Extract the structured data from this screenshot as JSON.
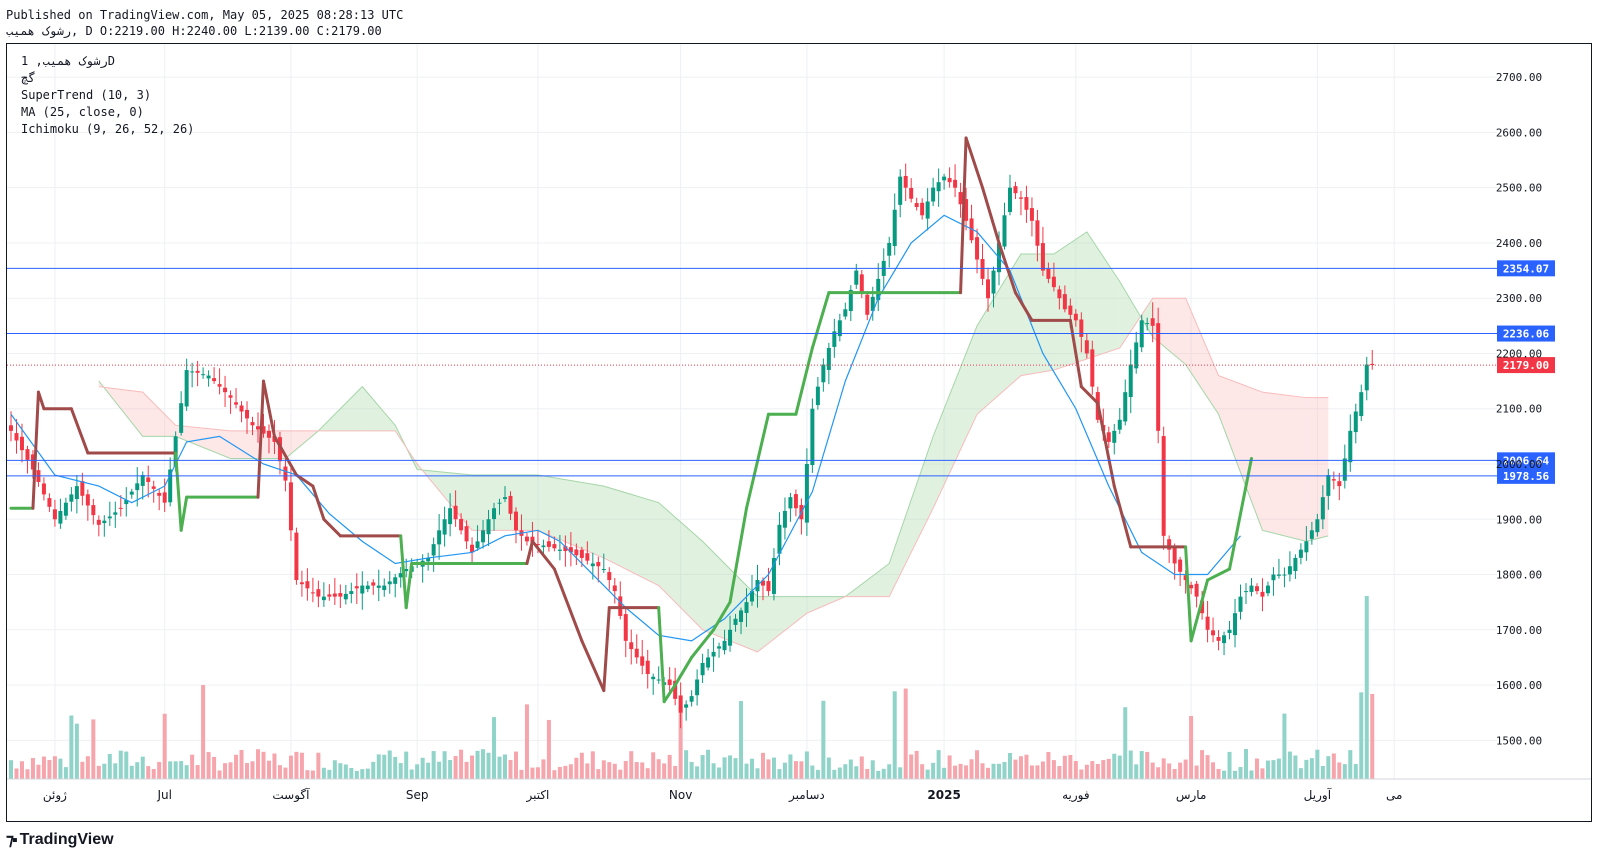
{
  "header": {
    "published": "Published on TradingView.com, May 05, 2025 08:28:13 UTC",
    "ohlc": "رشوک همیب, D O:2219.00 H:2240.00 L:2139.00 C:2179.00"
  },
  "legend": {
    "symbol": "رشوک همیب, 1D",
    "exchange": "گچ",
    "supertrend": "SuperTrend (10, 3)",
    "ma": "MA (25, close, 0)",
    "ichimoku": "Ichimoku (9, 26, 52, 26)"
  },
  "footer": {
    "logo_text": "TradingView"
  },
  "chart_data": {
    "type": "candlestick",
    "ylim": [
      1430,
      2760
    ],
    "y_ticks": [
      1500,
      1600,
      1700,
      1800,
      1900,
      2000,
      2100,
      2200,
      2300,
      2400,
      2500,
      2600,
      2700
    ],
    "grid": true,
    "x_labels": [
      {
        "text": "ژوئن",
        "bar": 8
      },
      {
        "text": "Jul",
        "bar": 28
      },
      {
        "text": "آگوست",
        "bar": 51
      },
      {
        "text": "Sep",
        "bar": 74
      },
      {
        "text": "اکتبر",
        "bar": 96
      },
      {
        "text": "Nov",
        "bar": 122
      },
      {
        "text": "دسامبر",
        "bar": 145
      },
      {
        "text": "2025",
        "bar": 170
      },
      {
        "text": "فوریه",
        "bar": 194
      },
      {
        "text": "مارس",
        "bar": 215
      },
      {
        "text": "آوریل",
        "bar": 238
      },
      {
        "text": "می",
        "bar": 252
      }
    ],
    "horizontal_lines": [
      {
        "value": 2354.07,
        "label": "2354.07",
        "color": "#2962ff"
      },
      {
        "value": 2236.06,
        "label": "2236.06",
        "color": "#2962ff"
      },
      {
        "value": 2006.64,
        "label": "2006.64",
        "color": "#2962ff"
      },
      {
        "value": 1978.56,
        "label": "1978.56",
        "color": "#2962ff"
      }
    ],
    "last_price": {
      "value": 2179.0,
      "label": "2179.00",
      "color": "#f23645"
    },
    "anchors": [
      [
        0,
        2060
      ],
      [
        4,
        1990
      ],
      [
        8,
        1900
      ],
      [
        12,
        1960
      ],
      [
        16,
        1890
      ],
      [
        20,
        1920
      ],
      [
        24,
        1980
      ],
      [
        28,
        1930
      ],
      [
        32,
        2170
      ],
      [
        36,
        2160
      ],
      [
        40,
        2120
      ],
      [
        44,
        2070
      ],
      [
        48,
        2040
      ],
      [
        50,
        1970
      ],
      [
        51,
        1880
      ],
      [
        52,
        1790
      ],
      [
        56,
        1760
      ],
      [
        60,
        1760
      ],
      [
        64,
        1780
      ],
      [
        68,
        1780
      ],
      [
        72,
        1810
      ],
      [
        76,
        1830
      ],
      [
        78,
        1880
      ],
      [
        80,
        1920
      ],
      [
        82,
        1880
      ],
      [
        84,
        1840
      ],
      [
        88,
        1920
      ],
      [
        90,
        1940
      ],
      [
        92,
        1880
      ],
      [
        94,
        1860
      ],
      [
        98,
        1850
      ],
      [
        102,
        1840
      ],
      [
        106,
        1820
      ],
      [
        108,
        1810
      ],
      [
        110,
        1770
      ],
      [
        112,
        1680
      ],
      [
        116,
        1620
      ],
      [
        120,
        1600
      ],
      [
        122,
        1550
      ],
      [
        124,
        1580
      ],
      [
        126,
        1640
      ],
      [
        130,
        1680
      ],
      [
        132,
        1720
      ],
      [
        134,
        1750
      ],
      [
        136,
        1790
      ],
      [
        138,
        1770
      ],
      [
        140,
        1890
      ],
      [
        142,
        1940
      ],
      [
        144,
        1900
      ],
      [
        146,
        2100
      ],
      [
        148,
        2180
      ],
      [
        150,
        2240
      ],
      [
        152,
        2280
      ],
      [
        154,
        2350
      ],
      [
        156,
        2270
      ],
      [
        160,
        2400
      ],
      [
        162,
        2520
      ],
      [
        164,
        2480
      ],
      [
        166,
        2450
      ],
      [
        168,
        2500
      ],
      [
        170,
        2520
      ],
      [
        172,
        2500
      ],
      [
        174,
        2440
      ],
      [
        176,
        2370
      ],
      [
        178,
        2300
      ],
      [
        180,
        2400
      ],
      [
        182,
        2500
      ],
      [
        184,
        2480
      ],
      [
        186,
        2440
      ],
      [
        188,
        2350
      ],
      [
        190,
        2320
      ],
      [
        192,
        2280
      ],
      [
        194,
        2260
      ],
      [
        196,
        2200
      ],
      [
        198,
        2080
      ],
      [
        200,
        2040
      ],
      [
        202,
        2080
      ],
      [
        204,
        2180
      ],
      [
        206,
        2260
      ],
      [
        208,
        2250
      ],
      [
        210,
        1870
      ],
      [
        212,
        1820
      ],
      [
        214,
        1790
      ],
      [
        216,
        1760
      ],
      [
        218,
        1700
      ],
      [
        220,
        1680
      ],
      [
        222,
        1700
      ],
      [
        224,
        1760
      ],
      [
        226,
        1780
      ],
      [
        228,
        1760
      ],
      [
        230,
        1800
      ],
      [
        232,
        1800
      ],
      [
        234,
        1830
      ],
      [
        236,
        1860
      ],
      [
        238,
        1900
      ],
      [
        240,
        1980
      ],
      [
        242,
        1960
      ],
      [
        244,
        2060
      ],
      [
        246,
        2130
      ],
      [
        247,
        2180
      ],
      [
        248,
        2179
      ]
    ],
    "supertrend": [
      [
        0,
        1920,
        "up"
      ],
      [
        4,
        1920,
        "up"
      ],
      [
        5,
        2130,
        "down"
      ],
      [
        6,
        2100,
        "down"
      ],
      [
        11,
        2100,
        "down"
      ],
      [
        14,
        2020,
        "down"
      ],
      [
        30,
        2020,
        "down"
      ],
      [
        31,
        1880,
        "up"
      ],
      [
        32,
        1940,
        "up"
      ],
      [
        45,
        1940,
        "up"
      ],
      [
        46,
        2150,
        "down"
      ],
      [
        48,
        2050,
        "down"
      ],
      [
        52,
        1980,
        "down"
      ],
      [
        55,
        1960,
        "down"
      ],
      [
        57,
        1900,
        "down"
      ],
      [
        60,
        1870,
        "down"
      ],
      [
        71,
        1870,
        "down"
      ],
      [
        72,
        1740,
        "up"
      ],
      [
        73,
        1820,
        "up"
      ],
      [
        94,
        1820,
        "up"
      ],
      [
        95,
        1860,
        "down"
      ],
      [
        99,
        1810,
        "down"
      ],
      [
        104,
        1680,
        "down"
      ],
      [
        108,
        1590,
        "down"
      ],
      [
        109,
        1740,
        "down"
      ],
      [
        118,
        1740,
        "down"
      ],
      [
        119,
        1570,
        "up"
      ],
      [
        121,
        1600,
        "up"
      ],
      [
        124,
        1650,
        "up"
      ],
      [
        128,
        1700,
        "up"
      ],
      [
        131,
        1750,
        "up"
      ],
      [
        134,
        1920,
        "up"
      ],
      [
        138,
        2090,
        "up"
      ],
      [
        143,
        2090,
        "up"
      ],
      [
        146,
        2210,
        "up"
      ],
      [
        149,
        2310,
        "up"
      ],
      [
        173,
        2310,
        "up"
      ],
      [
        174,
        2590,
        "down"
      ],
      [
        177,
        2500,
        "down"
      ],
      [
        180,
        2400,
        "down"
      ],
      [
        183,
        2310,
        "down"
      ],
      [
        186,
        2260,
        "down"
      ],
      [
        193,
        2260,
        "down"
      ],
      [
        195,
        2140,
        "down"
      ],
      [
        198,
        2110,
        "down"
      ],
      [
        201,
        1960,
        "down"
      ],
      [
        204,
        1850,
        "down"
      ],
      [
        214,
        1850,
        "down"
      ],
      [
        215,
        1680,
        "up"
      ],
      [
        218,
        1790,
        "up"
      ],
      [
        222,
        1810,
        "up"
      ],
      [
        226,
        2010,
        "up"
      ]
    ],
    "ma_curve": [
      [
        0,
        2090
      ],
      [
        8,
        1980
      ],
      [
        16,
        1960
      ],
      [
        22,
        1930
      ],
      [
        28,
        1960
      ],
      [
        32,
        2040
      ],
      [
        38,
        2050
      ],
      [
        46,
        2000
      ],
      [
        52,
        1980
      ],
      [
        58,
        1910
      ],
      [
        64,
        1860
      ],
      [
        70,
        1820
      ],
      [
        76,
        1830
      ],
      [
        84,
        1840
      ],
      [
        90,
        1870
      ],
      [
        96,
        1880
      ],
      [
        100,
        1860
      ],
      [
        106,
        1800
      ],
      [
        112,
        1740
      ],
      [
        118,
        1690
      ],
      [
        124,
        1680
      ],
      [
        130,
        1720
      ],
      [
        138,
        1800
      ],
      [
        146,
        1950
      ],
      [
        152,
        2150
      ],
      [
        158,
        2300
      ],
      [
        164,
        2400
      ],
      [
        170,
        2450
      ],
      [
        176,
        2420
      ],
      [
        182,
        2350
      ],
      [
        188,
        2200
      ],
      [
        194,
        2100
      ],
      [
        200,
        1960
      ],
      [
        206,
        1840
      ],
      [
        212,
        1800
      ],
      [
        218,
        1800
      ],
      [
        224,
        1870
      ]
    ],
    "cloud": [
      {
        "bar": 16,
        "a": 2150,
        "b": 2140
      },
      {
        "bar": 24,
        "a": 2050,
        "b": 2130
      },
      {
        "bar": 30,
        "a": 2050,
        "b": 2070
      },
      {
        "bar": 40,
        "a": 2010,
        "b": 2060
      },
      {
        "bar": 50,
        "a": 2010,
        "b": 2060
      },
      {
        "bar": 56,
        "a": 2060,
        "b": 2060
      },
      {
        "bar": 64,
        "a": 2140,
        "b": 2060
      },
      {
        "bar": 70,
        "a": 2070,
        "b": 2060
      },
      {
        "bar": 74,
        "a": 1990,
        "b": 2000
      },
      {
        "bar": 84,
        "a": 1980,
        "b": 1880
      },
      {
        "bar": 96,
        "a": 1980,
        "b": 1880
      },
      {
        "bar": 108,
        "a": 1960,
        "b": 1830
      },
      {
        "bar": 118,
        "a": 1930,
        "b": 1780
      },
      {
        "bar": 126,
        "a": 1860,
        "b": 1700
      },
      {
        "bar": 136,
        "a": 1760,
        "b": 1660
      },
      {
        "bar": 145,
        "a": 1760,
        "b": 1730
      },
      {
        "bar": 152,
        "a": 1760,
        "b": 1760
      },
      {
        "bar": 160,
        "a": 1820,
        "b": 1760
      },
      {
        "bar": 168,
        "a": 2050,
        "b": 1920
      },
      {
        "bar": 176,
        "a": 2250,
        "b": 2090
      },
      {
        "bar": 184,
        "a": 2380,
        "b": 2160
      },
      {
        "bar": 190,
        "a": 2380,
        "b": 2170
      },
      {
        "bar": 196,
        "a": 2420,
        "b": 2190
      },
      {
        "bar": 202,
        "a": 2330,
        "b": 2210
      },
      {
        "bar": 208,
        "a": 2230,
        "b": 2300
      },
      {
        "bar": 214,
        "a": 2180,
        "b": 2300
      },
      {
        "bar": 220,
        "a": 2090,
        "b": 2160
      },
      {
        "bar": 228,
        "a": 1880,
        "b": 2130
      },
      {
        "bar": 236,
        "a": 1860,
        "b": 2120
      },
      {
        "bar": 240,
        "a": 1870,
        "b": 2120
      }
    ]
  },
  "colors": {
    "up": "#089981",
    "down": "#f23645",
    "vol_up": "#8fd3c9",
    "vol_down": "#f5a5ab",
    "supertrend_up": "#4caf50",
    "supertrend_down": "#a04a4a",
    "ma": "#2196f3",
    "cloud_green": "#a5d6a7",
    "cloud_red": "#f8bbbb",
    "grid": "#eef0f3",
    "hline": "#2962ff"
  }
}
